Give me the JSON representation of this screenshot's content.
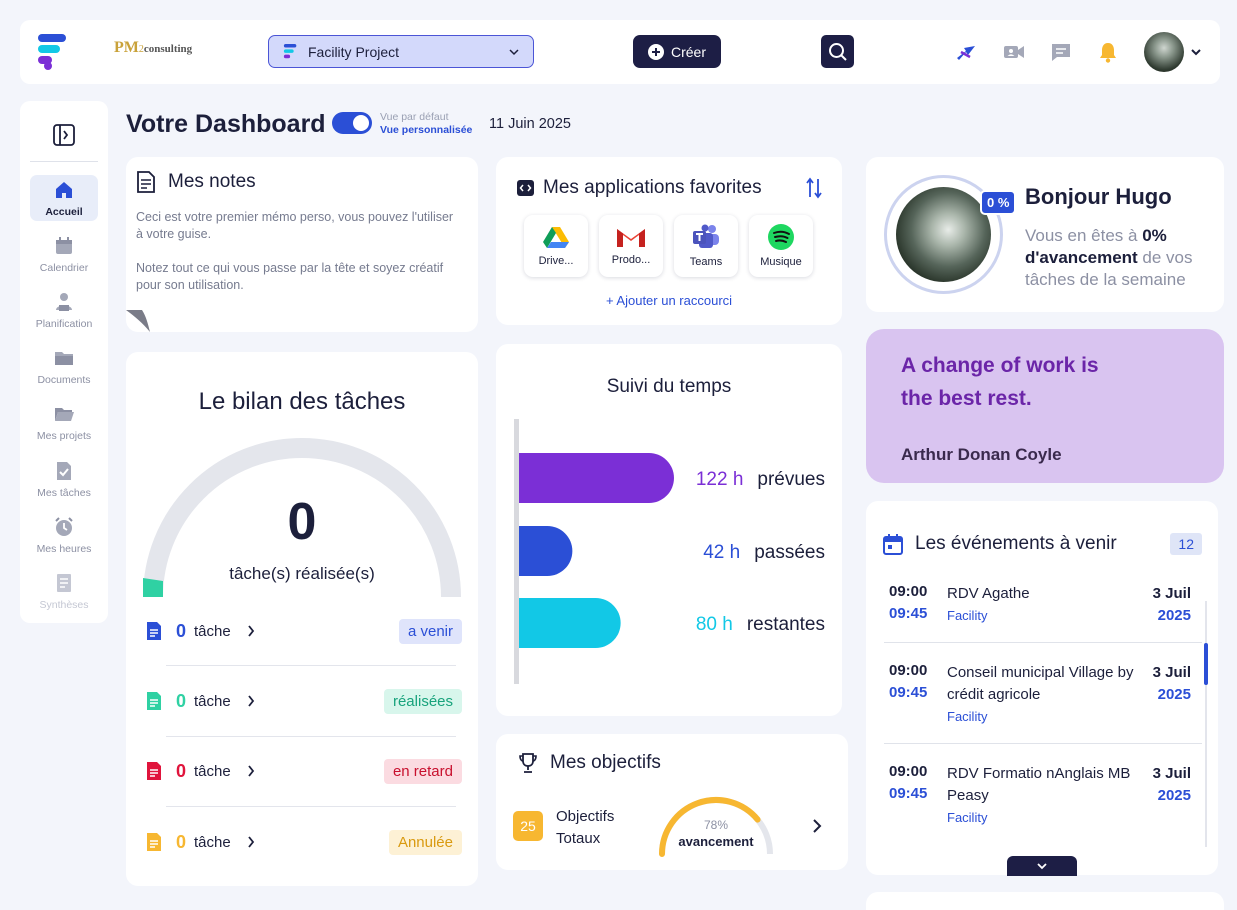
{
  "topbar": {
    "brand_mark": "app-logo",
    "partner_logo": {
      "pm": "PM",
      "two": "2",
      "consulting": "consulting"
    },
    "project_select": {
      "value": "Facility Project"
    },
    "create_label": "Créer",
    "icons": [
      "ai-icon",
      "video-icon",
      "chat-icon",
      "bell-icon"
    ]
  },
  "sidebar": {
    "items": [
      {
        "label": "Accueil",
        "icon": "home-icon",
        "active": true
      },
      {
        "label": "Calendrier",
        "icon": "calendar-icon"
      },
      {
        "label": "Planification",
        "icon": "planning-icon"
      },
      {
        "label": "Documents",
        "icon": "folder-icon"
      },
      {
        "label": "Mes projets",
        "icon": "folder-open-icon"
      },
      {
        "label": "Mes tâches",
        "icon": "task-icon"
      },
      {
        "label": "Mes heures",
        "icon": "clock-icon"
      },
      {
        "label": "Synthèses",
        "icon": "report-icon"
      }
    ]
  },
  "header": {
    "title": "Votre Dashboard",
    "view_default": "Vue par défaut",
    "view_custom": "Vue personnalisée",
    "date": "11 Juin 2025"
  },
  "notes": {
    "title": "Mes notes",
    "paragraph1": "Ceci est votre premier mémo perso, vous pouvez l'utiliser à votre guise.",
    "paragraph2": "Notez tout ce qui vous passe par la tête et soyez créatif pour son utilisation."
  },
  "apps": {
    "title": "Mes applications favorites",
    "items": [
      {
        "label": "Drive...",
        "icon": "google-drive-icon"
      },
      {
        "label": "Prodo...",
        "icon": "gmail-icon"
      },
      {
        "label": "Teams",
        "icon": "teams-icon"
      },
      {
        "label": "Musique",
        "icon": "spotify-icon"
      }
    ],
    "add_label": "+  Ajouter un raccourci"
  },
  "bilan": {
    "title": "Le bilan des tâches",
    "count": "0",
    "label": "tâche(s) réalisée(s)",
    "gauge_fraction": 0.0,
    "rows": [
      {
        "count": "0",
        "word": "tâche",
        "badge": "a venir",
        "color": "#2b4fd6",
        "badge_bg": "#dfe4fb"
      },
      {
        "count": "0",
        "word": "tâche",
        "badge": "réalisées",
        "color": "#2fd1a3",
        "badge_bg": "#d8f6ec"
      },
      {
        "count": "0",
        "word": "tâche",
        "badge": "en retard",
        "color": "#e0143c",
        "badge_bg": "#fbdbe1"
      },
      {
        "count": "0",
        "word": "tâche",
        "badge": "Annulée",
        "color": "#f7b731",
        "badge_bg": "#fdf1d5"
      }
    ]
  },
  "suivi": {
    "title": "Suivi du temps",
    "chart_data": {
      "type": "bar",
      "orientation": "horizontal",
      "categories": [
        "prévues",
        "passées",
        "restantes"
      ],
      "values": [
        122,
        42,
        80
      ],
      "value_labels": [
        "122 h",
        "42 h",
        "80 h"
      ],
      "colors": [
        "#7b2fd6",
        "#2b4fd6",
        "#12c8e6"
      ],
      "title": "Suivi du temps"
    }
  },
  "objectifs": {
    "title": "Mes objectifs",
    "total": "25",
    "label_line1": "Objectifs",
    "label_line2": "Totaux",
    "percent_label": "78%",
    "percent": 78,
    "advancement": "avancement"
  },
  "profile": {
    "percent_badge": "0 %",
    "greeting": "Bonjour Hugo",
    "text_before": "Vous en êtes à ",
    "text_bold": "0% d'avancement",
    "text_after": " de vos tâches de la semaine"
  },
  "quote": {
    "text": "A change of work is the best rest.",
    "author": "Arthur Donan Coyle"
  },
  "events": {
    "title": "Les événements à venir",
    "count": "12",
    "items": [
      {
        "start": "09:00",
        "end": "09:45",
        "title": "RDV Agathe",
        "tag": "Facility",
        "day": "3 Juil",
        "year": "2025"
      },
      {
        "start": "09:00",
        "end": "09:45",
        "title": "Conseil municipal Village by crédit agricole",
        "tag": "Facility",
        "day": "3 Juil",
        "year": "2025"
      },
      {
        "start": "09:00",
        "end": "09:45",
        "title": "RDV Formatio nAnglais MB Peasy",
        "tag": "Facility",
        "day": "3 Juil",
        "year": "2025"
      }
    ]
  }
}
